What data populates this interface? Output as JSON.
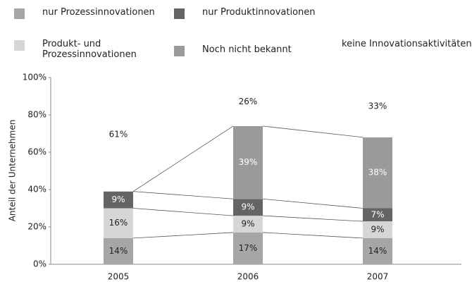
{
  "chart_data": {
    "type": "stacked_bar",
    "y_axis_label": "Anteil der Unternehmen",
    "categories": [
      "2005",
      "2006",
      "2007"
    ],
    "series": [
      {
        "name": "nur Prozessinnovationen",
        "color": "#a6a6a6",
        "values": [
          14,
          17,
          14
        ],
        "value_labels": [
          "14%",
          "17%",
          "14%"
        ]
      },
      {
        "name": "Produkt- und Prozessinnovationen",
        "color": "#d6d6d6",
        "values": [
          16,
          9,
          9
        ],
        "value_labels": [
          "16%",
          "9%",
          "9%"
        ]
      },
      {
        "name": "nur Produktinnovationen",
        "color": "#646464",
        "values": [
          9,
          9,
          7
        ],
        "value_labels": [
          "9%",
          "9%",
          "7%"
        ]
      },
      {
        "name": "Noch nicht bekannt",
        "color": "#9a9a9a",
        "values": [
          null,
          39,
          38
        ],
        "value_labels": [
          null,
          "39%",
          "38%"
        ]
      },
      {
        "name": "keine Innovationsaktivitäten",
        "color": "#ffffff",
        "values": [
          61,
          26,
          33
        ],
        "value_labels": [
          "61%",
          "26%",
          "33%"
        ]
      }
    ],
    "ylim": [
      0,
      100
    ],
    "yticks": [
      {
        "value": 0,
        "label": "0%"
      },
      {
        "value": 20,
        "label": "20%"
      },
      {
        "value": 40,
        "label": "40%"
      },
      {
        "value": 60,
        "label": "60%"
      },
      {
        "value": 80,
        "label": "80%"
      },
      {
        "value": 100,
        "label": "100%"
      }
    ],
    "connector_lines": true
  }
}
